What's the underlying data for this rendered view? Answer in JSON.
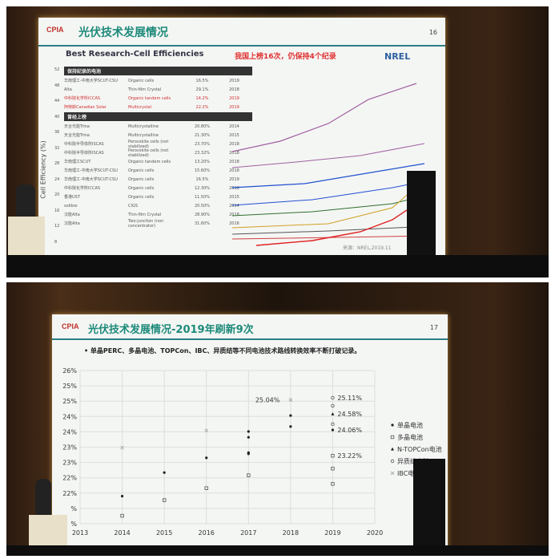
{
  "slide1": {
    "logo": "CPIA",
    "title": "光伏技术发展情况",
    "page": "16",
    "subtitle": "Best Research-Cell Efficiencies",
    "highlight": "我国上榜16次，仍保持4个纪录",
    "nrel_logo": "NREL",
    "ylabel": "Cell Efficiency (%)",
    "yticks": [
      "52",
      "48",
      "44",
      "40",
      "36",
      "32",
      "28",
      "24",
      "20",
      "16",
      "12",
      "8",
      "4"
    ],
    "section_current": "保持纪录的电池",
    "current": [
      [
        "华南理工-中南大学SCUT-CSU",
        "Organic cells",
        "16.5%",
        "2019"
      ],
      [
        "Alta",
        "Thin-film Crystal",
        "29.1%",
        "2018"
      ],
      [
        "中科院化学所ICCAS",
        "Organic tandem cells",
        "14.2%",
        "2019"
      ],
      [
        "阿特斯Canadian Solar",
        "Multicrystal",
        "22.2%",
        "2019"
      ]
    ],
    "section_past": "曾经上榜",
    "past": [
      [
        "天合光能Trina",
        "Multicrystalline",
        "20.80%",
        "2014"
      ],
      [
        "天合光能Trina",
        "Multicrystalline",
        "21.30%",
        "2015"
      ],
      [
        "中科院半导体所ISCAS",
        "Perovskite cells (not stabilized)",
        "23.70%",
        "2018"
      ],
      [
        "中科院半导体所ISCAS",
        "Perovskite cells (not stabilized)",
        "23.32%",
        "2018"
      ],
      [
        "华南理工SCUT",
        "Organic tandem cells",
        "13.20%",
        "2018"
      ],
      [
        "华南理工-中南大学SCUT-CSU",
        "Organic cells",
        "15.60%",
        "2018"
      ],
      [
        "华南理工-中南大学SCUT-CSU",
        "Organic cells",
        "16.5%",
        "2019"
      ],
      [
        "中科院化学所ICCAS",
        "Organic cells",
        "12.30%",
        "2018"
      ],
      [
        "香港UST",
        "Organic cells",
        "11.50%",
        "2015"
      ],
      [
        "solibro",
        "CIGS",
        "20.50%",
        "2014"
      ],
      [
        "汉能Alta",
        "Thin-film Crystal",
        "28.90%",
        "2018"
      ],
      [
        "汉能Alta",
        "Two-junction (non concentrator)",
        "31.60%",
        "2016"
      ]
    ],
    "source": "来源：NREL,2019.11"
  },
  "slide2": {
    "logo": "CPIA",
    "title": "光伏技术发展情况-2019年刷新9次",
    "page": "17",
    "bullet": "单晶PERC、多晶电池、TOPCon、IBC、异质结等不同电池技术路线转换效率不断打破记录。"
  },
  "chart_data": {
    "type": "scatter",
    "xlim": [
      2013,
      2020
    ],
    "ylim": [
      21,
      26
    ],
    "xticks": [
      "2013",
      "2014",
      "2015",
      "2016",
      "2017",
      "2018",
      "2019",
      "2020"
    ],
    "yticks": [
      "26%",
      "25%",
      "25%",
      "24%",
      "24%",
      "23%",
      "23%",
      "22%",
      "22%",
      "%",
      "%"
    ],
    "grid": true,
    "legend": "right",
    "series": [
      {
        "name": "单晶电池",
        "marker": "dot",
        "points": [
          [
            2014,
            21.9
          ],
          [
            2015,
            22.67
          ],
          [
            2016,
            23.15
          ],
          [
            2017,
            24.01
          ],
          [
            2017,
            23.82
          ],
          [
            2017,
            23.32
          ],
          [
            2017,
            23.28
          ],
          [
            2018,
            24.53
          ],
          [
            2018,
            24.17
          ],
          [
            2019,
            24.06
          ]
        ]
      },
      {
        "name": "多晶电池",
        "marker": "square",
        "points": [
          [
            2014,
            21.26
          ],
          [
            2015,
            21.77
          ],
          [
            2016,
            22.16
          ],
          [
            2017,
            22.58
          ],
          [
            2019,
            23.22
          ],
          [
            2019,
            22.8
          ],
          [
            2019,
            22.3
          ]
        ]
      },
      {
        "name": "N-TOPCon电池",
        "marker": "triangle",
        "points": [
          [
            2019,
            24.58
          ]
        ]
      },
      {
        "name": "异质结电池",
        "marker": "circle",
        "points": [
          [
            2019,
            25.11
          ],
          [
            2019,
            24.85
          ],
          [
            2019,
            24.25
          ]
        ]
      },
      {
        "name": "IBC电池",
        "marker": "x",
        "points": [
          [
            2014,
            23.48
          ],
          [
            2016,
            24.04
          ],
          [
            2018,
            25.04
          ]
        ]
      }
    ],
    "annotations": [
      "25.04%",
      "25.11%",
      "24.58%",
      "24.06%",
      "23.22%"
    ],
    "annotation_points": [
      [
        2018,
        25.04
      ],
      [
        2019,
        25.11
      ],
      [
        2019,
        24.58
      ],
      [
        2019,
        24.06
      ],
      [
        2019,
        23.22
      ]
    ]
  }
}
